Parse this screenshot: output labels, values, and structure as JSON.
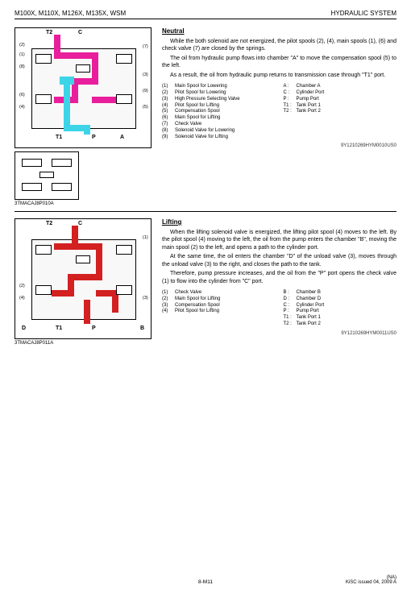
{
  "header": {
    "left": "M100X, M110X, M126X, M135X, WSM",
    "right": "HYDRAULIC SYSTEM"
  },
  "neutral": {
    "title": "Neutral",
    "p1": "While the both solenoid are not energized, the pilot spools (2), (4), main spools (1), (6) and check valve (7) are closed by the springs.",
    "p2": "The oil from hydraulic pump flows into chamber \"A\" to move the compensation spool (5) to the left.",
    "p3": "As a result, the oil from hydraulic pump returns to transmission case through \"T1\" port.",
    "legend_left": [
      {
        "n": "(1)",
        "t": "Main Spool for Lowering"
      },
      {
        "n": "(2)",
        "t": "Pilot Spool for Lowering"
      },
      {
        "n": "(3)",
        "t": "High Pressure Selecting Valve"
      },
      {
        "n": "(4)",
        "t": "Pilot Spool for Lifting"
      },
      {
        "n": "(5)",
        "t": "Compensation Spool"
      },
      {
        "n": "(6)",
        "t": "Main Spool for Lifting"
      },
      {
        "n": "(7)",
        "t": "Check Valve"
      },
      {
        "n": "(8)",
        "t": "Solenoid Valve for Lowering"
      },
      {
        "n": "(9)",
        "t": "Solenoid Valve for Lifting"
      }
    ],
    "legend_right": [
      {
        "n": "A :",
        "t": "Chamber A"
      },
      {
        "n": "C :",
        "t": "Cylinder Port"
      },
      {
        "n": "P :",
        "t": "Pump Port"
      },
      {
        "n": "T1 :",
        "t": "Tank Port 1"
      },
      {
        "n": "T2 :",
        "t": "Tank Port 2"
      }
    ],
    "doc_id": "9Y1210269HYM0010US0",
    "caption": "3TMACAJ8P010A",
    "ports": {
      "T2": "T2",
      "C": "C",
      "T1": "T1",
      "P": "P",
      "A": "A"
    },
    "callouts": [
      "(1)",
      "(2)",
      "(3)",
      "(4)",
      "(5)",
      "(6)",
      "(7)",
      "(8)",
      "(9)"
    ]
  },
  "lifting": {
    "title": "Lifting",
    "p1": "When the lifting solenoid valve is energized, the lifting pilot spool (4) moves to the left. By the pilot spool (4) moving to the left, the oil from the pump enters the chamber \"B\", moving the main spool (2) to the left, and opens a path to the cylinder port.",
    "p2": "At the same time, the oil enters the chamber \"D\" of the unload valve (3), moves through the unload valve (3) to the right, and closes the path to the tank.",
    "p3": "Therefore, pump pressure increases, and the oil from the \"P\" port opens the check valve (1) to flow into the cylinder from \"C\" port.",
    "legend_left": [
      {
        "n": "(1)",
        "t": "Check Valve"
      },
      {
        "n": "(2)",
        "t": "Main Spool for Lifting"
      },
      {
        "n": "(3)",
        "t": "Compensation Spool"
      },
      {
        "n": "(4)",
        "t": "Pilot Spool for Lifting"
      }
    ],
    "legend_right": [
      {
        "n": "B :",
        "t": "Chamber B"
      },
      {
        "n": "D :",
        "t": "Chamber D"
      },
      {
        "n": "C :",
        "t": "Cylinder Port"
      },
      {
        "n": "P :",
        "t": "Pump Port"
      },
      {
        "n": "T1 :",
        "t": "Tank Port 1"
      },
      {
        "n": "T2 :",
        "t": "Tank Port 2"
      }
    ],
    "doc_id": "9Y1210269HYM0011US0",
    "caption": "3TMACAJ8P011A",
    "ports": {
      "T2": "T2",
      "C": "C",
      "T1": "T1",
      "P": "P",
      "D": "D",
      "B": "B"
    },
    "callouts": [
      "(1)",
      "(2)",
      "(3)",
      "(4)"
    ]
  },
  "footer": {
    "page": "8-M11",
    "na": "(NA)",
    "issued": "KiSC issued 04, 2009 A"
  }
}
